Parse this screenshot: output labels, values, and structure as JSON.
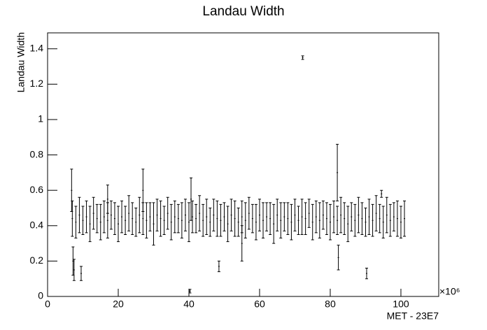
{
  "chart_data": {
    "type": "errorbar",
    "title": "Landau Width",
    "x_label": "MET - 23E7",
    "y_label": "Landau Width",
    "x_exponent": "×10⁶",
    "xlim": [
      0,
      110.7
    ],
    "ylim": [
      0,
      1.49
    ],
    "xticks": [
      0,
      20,
      40,
      60,
      80,
      100
    ],
    "yticks": [
      0,
      0.2,
      0.4,
      0.6,
      0.8,
      1,
      1.2,
      1.4
    ],
    "color": "#000000",
    "x": [
      7,
      8,
      9,
      10,
      11,
      12,
      13,
      14,
      15,
      16,
      17,
      18,
      19,
      20,
      21,
      22,
      23,
      24,
      25,
      26,
      27,
      28,
      29,
      30,
      31,
      32,
      33,
      34,
      35,
      36,
      37,
      38,
      39,
      40,
      41,
      42,
      43,
      44,
      45,
      46,
      47,
      48,
      49,
      50,
      51,
      52,
      53,
      54,
      55,
      56,
      57,
      58,
      59,
      60,
      61,
      62,
      63,
      64,
      65,
      66,
      67,
      68,
      69,
      70,
      71,
      72,
      73,
      74,
      75,
      76,
      77,
      78,
      79,
      80,
      81,
      82,
      83,
      84,
      85,
      86,
      87,
      88,
      89,
      90,
      91,
      92,
      93,
      94,
      95,
      96,
      97,
      98,
      99,
      100,
      101,
      6.8,
      7.2,
      7.5,
      9.5,
      27,
      40.3,
      40.6,
      48.5,
      72.2,
      82,
      82.3,
      90.3,
      94.5,
      17,
      55
    ],
    "values": [
      0.44,
      0.42,
      0.46,
      0.43,
      0.45,
      0.41,
      0.47,
      0.44,
      0.42,
      0.45,
      0.43,
      0.46,
      0.44,
      0.41,
      0.45,
      0.43,
      0.47,
      0.44,
      0.42,
      0.46,
      0.44,
      0.43,
      0.45,
      0.41,
      0.46,
      0.44,
      0.43,
      0.47,
      0.42,
      0.45,
      0.44,
      0.43,
      0.46,
      0.42,
      0.45,
      0.44,
      0.47,
      0.43,
      0.45,
      0.42,
      0.46,
      0.44,
      0.43,
      0.45,
      0.41,
      0.46,
      0.44,
      0.42,
      0.45,
      0.43,
      0.47,
      0.44,
      0.42,
      0.46,
      0.43,
      0.45,
      0.44,
      0.41,
      0.46,
      0.43,
      0.45,
      0.44,
      0.42,
      0.46,
      0.43,
      0.45,
      0.44,
      0.47,
      0.42,
      0.45,
      0.43,
      0.46,
      0.44,
      0.42,
      0.45,
      0.43,
      0.46,
      0.44,
      0.41,
      0.45,
      0.43,
      0.46,
      0.44,
      0.42,
      0.45,
      0.43,
      0.47,
      0.44,
      0.42,
      0.46,
      0.43,
      0.45,
      0.44,
      0.42,
      0.44,
      0.6,
      0.2,
      0.15,
      0.13,
      0.6,
      0.03,
      0.55,
      0.17,
      1.35,
      0.7,
      0.22,
      0.13,
      0.58,
      0.55,
      0.3
    ],
    "errors": [
      0.1,
      0.09,
      0.1,
      0.08,
      0.09,
      0.1,
      0.09,
      0.08,
      0.1,
      0.09,
      0.1,
      0.08,
      0.09,
      0.1,
      0.09,
      0.08,
      0.1,
      0.09,
      0.08,
      0.1,
      0.09,
      0.1,
      0.08,
      0.12,
      0.09,
      0.1,
      0.08,
      0.09,
      0.1,
      0.09,
      0.08,
      0.1,
      0.09,
      0.11,
      0.09,
      0.08,
      0.1,
      0.09,
      0.1,
      0.08,
      0.09,
      0.1,
      0.09,
      0.08,
      0.1,
      0.09,
      0.1,
      0.08,
      0.09,
      0.1,
      0.09,
      0.08,
      0.1,
      0.09,
      0.1,
      0.08,
      0.09,
      0.11,
      0.09,
      0.1,
      0.08,
      0.09,
      0.1,
      0.09,
      0.08,
      0.1,
      0.09,
      0.08,
      0.1,
      0.09,
      0.1,
      0.08,
      0.09,
      0.1,
      0.09,
      0.08,
      0.1,
      0.09,
      0.1,
      0.08,
      0.09,
      0.1,
      0.09,
      0.08,
      0.1,
      0.09,
      0.1,
      0.08,
      0.09,
      0.1,
      0.09,
      0.08,
      0.1,
      0.09,
      0.1,
      0.12,
      0.08,
      0.06,
      0.04,
      0.12,
      0.01,
      0.12,
      0.03,
      0.01,
      0.16,
      0.07,
      0.03,
      0.02,
      0.08,
      0.1
    ]
  }
}
